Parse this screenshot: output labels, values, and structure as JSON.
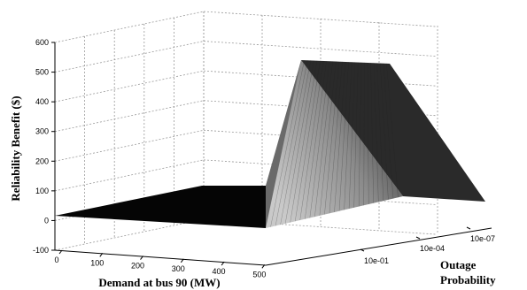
{
  "chart_data": {
    "type": "surface",
    "x": {
      "label": "Demand at bus 90 (MW)",
      "ticks": [
        "0",
        "100",
        "200",
        "300",
        "400",
        "500"
      ]
    },
    "y": {
      "label_line1": "Outage",
      "label_line2": "Probability",
      "ticks": [
        "10e-01",
        "10e-04",
        "10e-07"
      ]
    },
    "z": {
      "label": "Reliability Benefit ($)",
      "ticks": [
        "-100",
        "0",
        "100",
        "200",
        "300",
        "400",
        "500",
        "600"
      ],
      "range": [
        -100,
        600
      ]
    },
    "grid": true,
    "surface_profile": {
      "demand_MW": [
        0,
        230,
        230,
        520
      ],
      "benefit_at_10e-01": [
        0,
        0,
        0,
        0
      ],
      "benefit_at_10e-07": [
        0,
        0,
        520,
        60
      ]
    }
  }
}
